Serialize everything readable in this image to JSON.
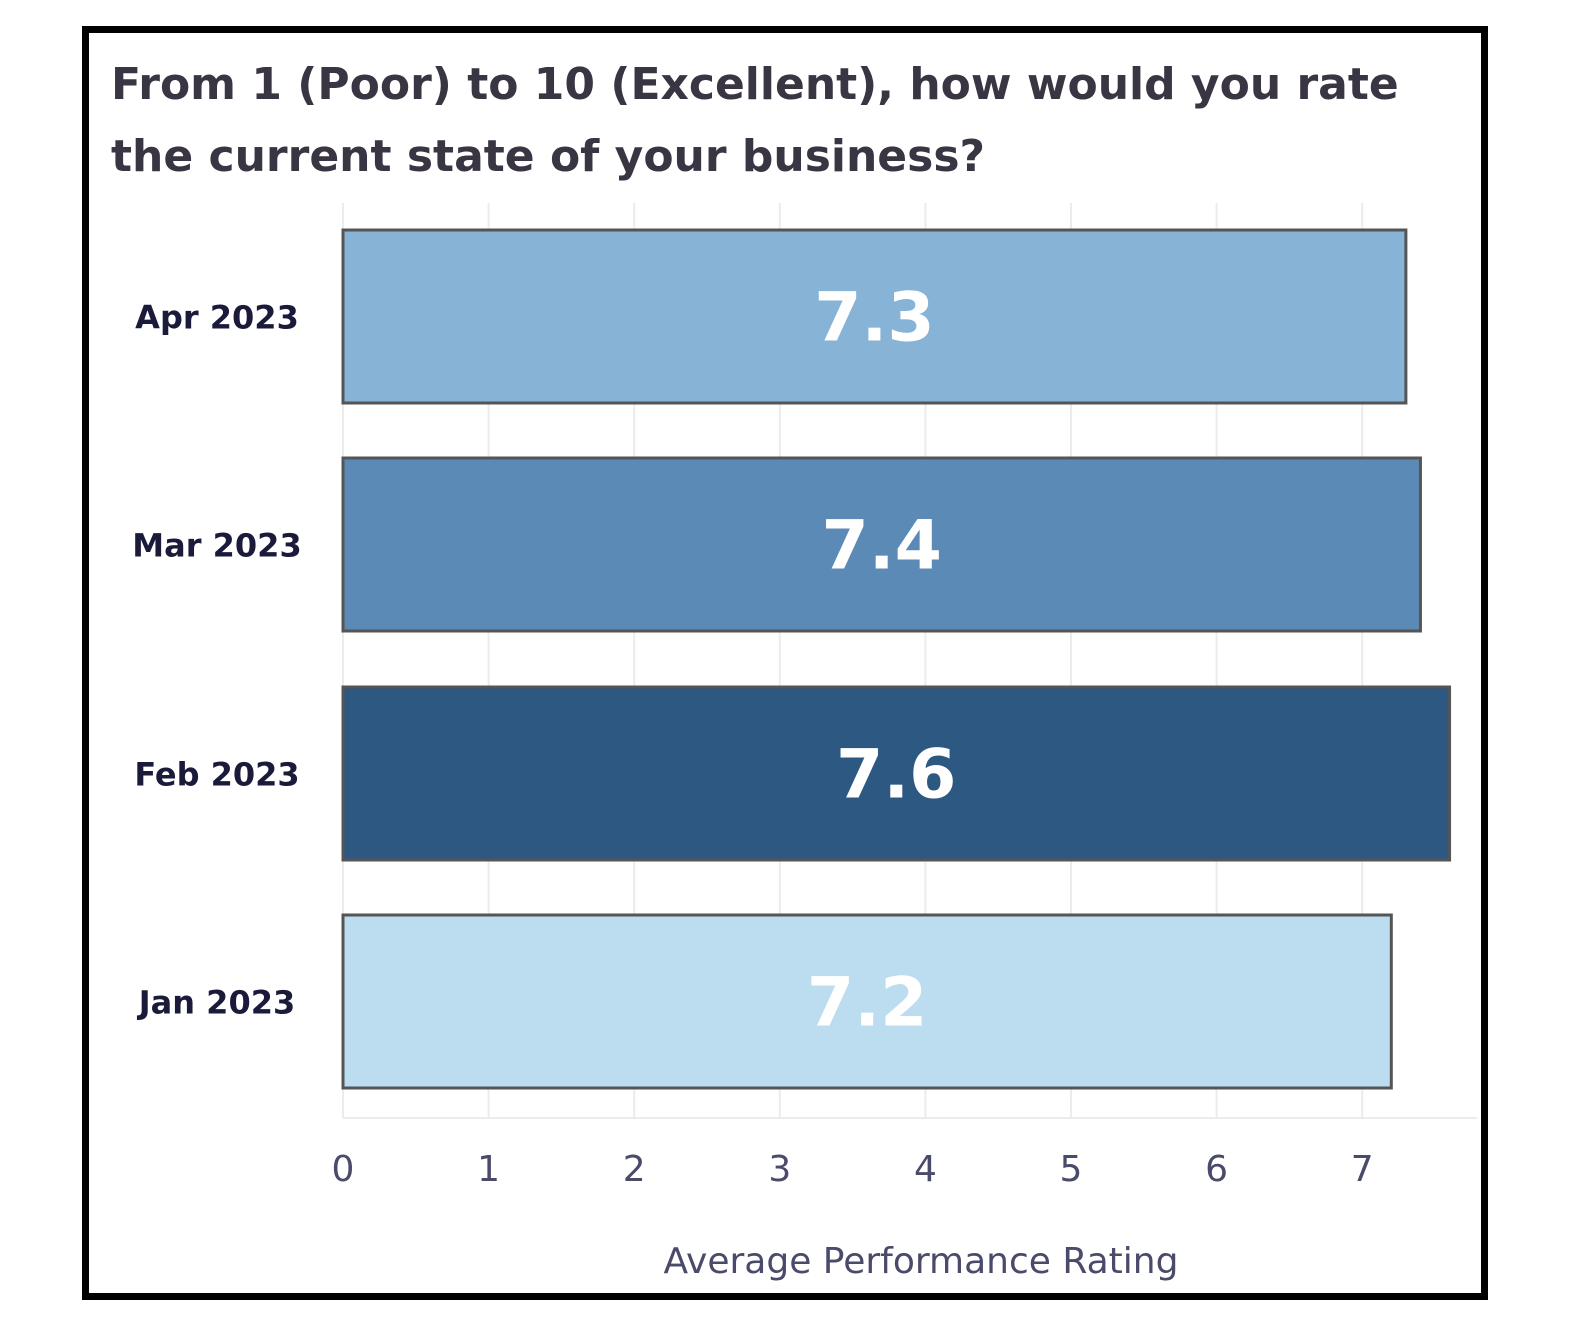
{
  "chart_data": {
    "type": "bar",
    "orientation": "horizontal",
    "title": "From 1 (Poor) to 10 (Excellent), how would you rate the current state of your business?",
    "categories": [
      "Apr 2023",
      "Mar 2023",
      "Feb 2023",
      "Jan 2023"
    ],
    "values": [
      7.3,
      7.4,
      7.6,
      7.2
    ],
    "data_labels": [
      "7.3",
      "7.4",
      "7.6",
      "7.2"
    ],
    "colors": [
      "#86b3d6",
      "#5b8ab6",
      "#2d5882",
      "#bcdcf0"
    ],
    "xlabel": "Average Performance Rating",
    "ylabel": "",
    "xlim": [
      0,
      7.8
    ],
    "xticks": [
      "0",
      "1",
      "2",
      "3",
      "4",
      "5",
      "6",
      "7"
    ],
    "grid": true,
    "legend": "none"
  }
}
